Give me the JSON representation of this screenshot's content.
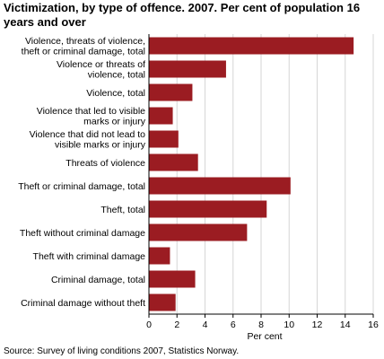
{
  "chart_data": {
    "type": "bar",
    "orientation": "horizontal",
    "title": "Victimization, by type of offence. 2007. Per cent of population 16 years and over",
    "xlabel": "Per cent",
    "ylabel": "",
    "xlim": [
      0,
      16
    ],
    "ticks": [
      0,
      2,
      4,
      6,
      8,
      10,
      12,
      14,
      16
    ],
    "grid": true,
    "legend": "none",
    "bar_color": "#9b1c22",
    "categories": [
      [
        "Violence, threats of violence,",
        "theft or criminal damage, total"
      ],
      [
        "Violence or threats of",
        "violence, total"
      ],
      [
        "Violence, total"
      ],
      [
        "Violence that led to visible",
        "marks or injury"
      ],
      [
        "Violence that did not lead to",
        "visible marks or injury"
      ],
      [
        "Threats of violence"
      ],
      [
        "Theft or criminal damage, total"
      ],
      [
        "Theft, total"
      ],
      [
        "Theft without criminal damage"
      ],
      [
        "Theft with criminal damage"
      ],
      [
        "Criminal damage, total"
      ],
      [
        "Criminal damage without theft"
      ]
    ],
    "values": [
      14.6,
      5.5,
      3.1,
      1.7,
      2.1,
      3.5,
      10.1,
      8.4,
      7.0,
      1.5,
      3.3,
      1.9
    ],
    "source": "Source: Survey of living conditions 2007, Statistics Norway."
  }
}
